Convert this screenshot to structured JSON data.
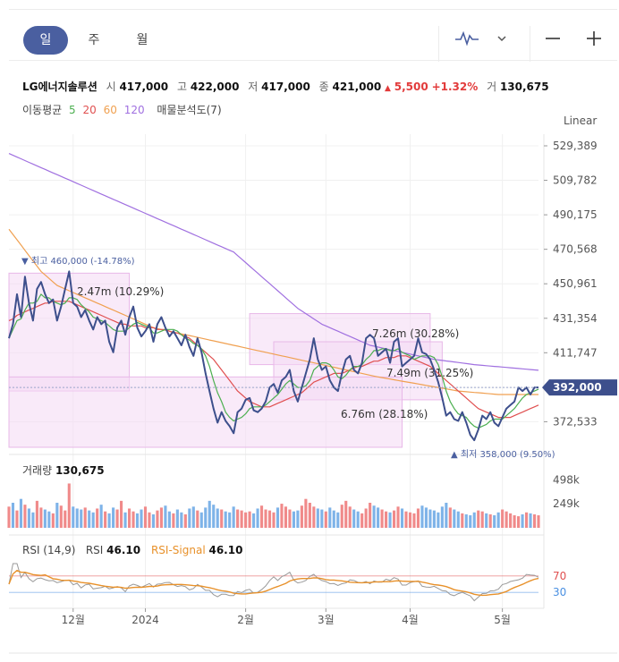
{
  "tabs": [
    {
      "label": "일",
      "active": true
    },
    {
      "label": "주",
      "active": false
    },
    {
      "label": "월",
      "active": false
    }
  ],
  "toolbar": {
    "chart_type_icon": "line-chart-icon",
    "dropdown_icon": "chevron-down-icon",
    "zoom_out_icon": "minus-icon",
    "zoom_in_icon": "plus-icon"
  },
  "stock": {
    "name": "LG에너지솔루션",
    "open_label": "시",
    "open": "417,000",
    "high_label": "고",
    "high": "422,000",
    "low_label": "저",
    "low": "417,000",
    "close_label": "종",
    "close": "421,000",
    "change_arrow": "▲",
    "change": "5,500",
    "change_pct": "+1.32%",
    "volume_label": "거",
    "volume": "130,675"
  },
  "ma": {
    "label": "이동평균",
    "p5": "5",
    "p20": "20",
    "p60": "60",
    "p120": "120",
    "vp_label": "매물분석도(7)"
  },
  "scale": "Linear",
  "colors": {
    "price": "#3d4f8c",
    "ma5": "#4caf50",
    "ma20": "#e05050",
    "ma60": "#f0a050",
    "ma120": "#a070e0",
    "up": "#e23b3b",
    "down": "#4a90e2",
    "vol_up": "#f08a8a",
    "vol_down": "#7eb3e8",
    "profile": "#f4d8f4",
    "rsi": "#999999",
    "rsi_signal": "#e8912a"
  },
  "chart_data": {
    "type": "line",
    "y_ticks": [
      "529,389",
      "509,782",
      "490,175",
      "470,568",
      "450,961",
      "431,354",
      "411,747",
      "392,000",
      "372,533"
    ],
    "y_tick_values": [
      529389,
      509782,
      490175,
      470568,
      450961,
      431354,
      411747,
      392000,
      372533
    ],
    "ylim": [
      358000,
      536000
    ],
    "x_ticks": [
      "12월",
      "2024",
      "2월",
      "3월",
      "4월",
      "5월"
    ],
    "x_tick_index": [
      16,
      34,
      59,
      79,
      100,
      123
    ],
    "last_price_label": "392,000",
    "last_price": 392000,
    "max_label": "▼ 최고 460,000 (-14.78%)",
    "max_value": 460000,
    "min_label": "▲ 최저 358,000 (9.50%)",
    "min_value": 358000,
    "volume_profile": [
      {
        "label": "2.47m (10.29%)",
        "low": 390000,
        "high": 457000,
        "start": 0,
        "end": 30
      },
      {
        "label": "7.26m (30.28%)",
        "low": 405000,
        "high": 434000,
        "start": 60,
        "end": 105
      },
      {
        "label": "7.49m (31.25%)",
        "low": 385000,
        "high": 418000,
        "start": 66,
        "end": 108
      },
      {
        "label": "6.76m (28.18%)",
        "low": 358000,
        "high": 398000,
        "start": 0,
        "end": 98
      }
    ],
    "price": [
      420000,
      428000,
      445000,
      432000,
      455000,
      440000,
      430000,
      448000,
      452000,
      445000,
      440000,
      442000,
      430000,
      438000,
      448000,
      458000,
      440000,
      438000,
      432000,
      436000,
      430000,
      425000,
      432000,
      428000,
      430000,
      418000,
      412000,
      426000,
      430000,
      422000,
      432000,
      438000,
      426000,
      421000,
      424000,
      428000,
      418000,
      428000,
      432000,
      426000,
      421000,
      424000,
      420000,
      416000,
      422000,
      415000,
      410000,
      420000,
      412000,
      400000,
      390000,
      380000,
      372000,
      378000,
      373000,
      370000,
      366000,
      378000,
      380000,
      385000,
      386000,
      379000,
      378000,
      380000,
      384000,
      392000,
      394000,
      389000,
      396000,
      398000,
      402000,
      390000,
      384000,
      392000,
      400000,
      408000,
      420000,
      408000,
      402000,
      404000,
      396000,
      392000,
      390000,
      400000,
      408000,
      410000,
      402000,
      400000,
      406000,
      420000,
      422000,
      420000,
      410000,
      412000,
      414000,
      406000,
      418000,
      420000,
      404000,
      406000,
      408000,
      410000,
      420000,
      412000,
      411000,
      408000,
      402000,
      395000,
      386000,
      376000,
      378000,
      374000,
      373000,
      378000,
      372000,
      365000,
      362000,
      368000,
      376000,
      374000,
      378000,
      372000,
      370000,
      375000,
      380000,
      382000,
      384000,
      392000,
      390000,
      392000,
      388000,
      392000,
      392000
    ],
    "ma5": [
      420000,
      425000,
      430000,
      431000,
      436000,
      440000,
      440000,
      441000,
      445000,
      443000,
      443000,
      441000,
      440000,
      439000,
      440000,
      443000,
      443000,
      442000,
      439000,
      437000,
      435000,
      432000,
      431000,
      430000,
      429000,
      427000,
      425000,
      424000,
      424000,
      424000,
      426000,
      428000,
      429000,
      428000,
      427000,
      426000,
      423000,
      423000,
      424000,
      425000,
      425000,
      425000,
      424000,
      422000,
      420000,
      419000,
      417000,
      416000,
      414000,
      410000,
      404000,
      396000,
      389000,
      384000,
      378000,
      375000,
      373000,
      374000,
      375000,
      377000,
      380000,
      381000,
      381000,
      381000,
      382000,
      384000,
      386000,
      388000,
      391000,
      394000,
      396000,
      394000,
      392000,
      392000,
      393000,
      396000,
      402000,
      404000,
      406000,
      406000,
      405000,
      402000,
      398000,
      397000,
      399000,
      402000,
      404000,
      404000,
      405000,
      408000,
      410000,
      413000,
      413000,
      414000,
      414000,
      413000,
      413000,
      414000,
      412000,
      411000,
      410000,
      408000,
      409000,
      410000,
      410000,
      410000,
      409000,
      405000,
      398000,
      390000,
      384000,
      380000,
      377000,
      376000,
      375000,
      372000,
      370000,
      369000,
      370000,
      371000,
      373000,
      374000,
      374000,
      374000,
      376000,
      378000,
      380000,
      383000,
      386000,
      388000,
      389000,
      390000,
      391000
    ],
    "ma20": [
      430000,
      431000,
      433000,
      434000,
      435000,
      436000,
      437000,
      438000,
      439000,
      440000,
      440000,
      441000,
      441000,
      441000,
      441000,
      441000,
      440000,
      439000,
      438000,
      437000,
      436000,
      435000,
      434000,
      433000,
      432000,
      431000,
      430000,
      429000,
      428000,
      428000,
      427000,
      427000,
      427000,
      427000,
      426000,
      426000,
      426000,
      425000,
      425000,
      425000,
      424000,
      423000,
      423000,
      422000,
      421000,
      420000,
      418000,
      416000,
      414000,
      412000,
      410000,
      408000,
      405000,
      402000,
      399000,
      396000,
      393000,
      390000,
      388000,
      386000,
      384000,
      383000,
      382000,
      381000,
      381000,
      381000,
      382000,
      383000,
      384000,
      385000,
      386000,
      387000,
      388000,
      389000,
      391000,
      393000,
      395000,
      396000,
      397000,
      398000,
      399000,
      400000,
      400000,
      400000,
      401000,
      402000,
      403000,
      404000,
      404000,
      405000,
      406000,
      407000,
      407000,
      408000,
      409000,
      409000,
      409000,
      410000,
      410000,
      410000,
      409000,
      408000,
      407000,
      406000,
      405000,
      404000,
      402000,
      400000,
      398000,
      396000,
      394000,
      392000,
      390000,
      388000,
      386000,
      384000,
      382000,
      380000,
      379000,
      378000,
      377000,
      376000,
      375000,
      375000,
      375000,
      375000,
      376000,
      377000,
      378000,
      379000,
      380000,
      381000,
      382000
    ],
    "ma60": [
      482000,
      479000,
      476000,
      473000,
      470000,
      467000,
      464000,
      461000,
      458000,
      456000,
      454000,
      452000,
      450000,
      449000,
      448000,
      447000,
      446000,
      445000,
      444000,
      443000,
      442000,
      441000,
      440000,
      439000,
      438000,
      437000,
      436000,
      435000,
      434000,
      433000,
      432000,
      431000,
      430000,
      429000,
      428000,
      427000,
      426000,
      425500,
      425000,
      424500,
      424000,
      423500,
      423000,
      422500,
      422000,
      421500,
      421000,
      420500,
      420000,
      419500,
      419000,
      418500,
      418000,
      417500,
      417000,
      416500,
      416000,
      415500,
      415000,
      414500,
      414000,
      413500,
      413000,
      412500,
      412000,
      411500,
      411000,
      410500,
      410000,
      409500,
      409000,
      408500,
      408000,
      407500,
      407000,
      406500,
      406000,
      405500,
      405000,
      404500,
      404000,
      403500,
      403000,
      402500,
      402000,
      401500,
      401000,
      400500,
      400000,
      399500,
      399000,
      398500,
      398000,
      397600,
      397200,
      396800,
      396400,
      396000,
      395600,
      395200,
      394800,
      394400,
      394000,
      393600,
      393200,
      392800,
      392400,
      392000,
      391600,
      391200,
      390800,
      390400,
      390000,
      389800,
      389600,
      389400,
      389200,
      389000,
      388800,
      388600,
      388400,
      388200,
      388000,
      388000,
      388000,
      388000,
      388000,
      388000,
      388000,
      388000,
      388000,
      388000,
      388000
    ],
    "ma120": [
      525000,
      524000,
      523000,
      522000,
      521000,
      520000,
      519000,
      518000,
      517000,
      516000,
      515000,
      514000,
      513000,
      512000,
      511000,
      510000,
      509000,
      508000,
      507000,
      506000,
      505000,
      504000,
      503000,
      502000,
      501000,
      500000,
      499000,
      498000,
      497000,
      496000,
      495000,
      494000,
      493000,
      492000,
      491000,
      490000,
      489000,
      488000,
      487000,
      486000,
      485000,
      484000,
      483000,
      482000,
      481000,
      480000,
      479000,
      478000,
      477000,
      476000,
      475000,
      474000,
      473000,
      472000,
      471000,
      470000,
      469000,
      467000,
      465000,
      463000,
      461000,
      459000,
      457000,
      455000,
      453000,
      451000,
      449000,
      447000,
      445000,
      443000,
      441000,
      439000,
      437000,
      435500,
      434000,
      432500,
      431000,
      429500,
      428000,
      427000,
      426000,
      425000,
      424000,
      423000,
      422000,
      421000,
      420000,
      419000,
      418000,
      417000,
      416000,
      415500,
      415000,
      414500,
      414000,
      413500,
      413000,
      412500,
      412000,
      411500,
      411000,
      410500,
      410000,
      409500,
      409000,
      408500,
      408000,
      407700,
      407400,
      407100,
      406800,
      406500,
      406200,
      405900,
      405600,
      405300,
      405000,
      404800,
      404600,
      404400,
      404200,
      404000,
      403800,
      403600,
      403400,
      403200,
      403000,
      402800,
      402600,
      402400,
      402200,
      402000,
      401800
    ],
    "volume_title": "거래량",
    "volume_value": "130,675",
    "volume_ticks": [
      "498k",
      "249k"
    ],
    "volume_tick_values": [
      498000,
      249000
    ],
    "volume_max": 650000,
    "volume": [
      220000,
      260000,
      180000,
      300000,
      240000,
      200000,
      160000,
      280000,
      210000,
      190000,
      170000,
      150000,
      260000,
      230000,
      180000,
      460000,
      220000,
      200000,
      190000,
      210000,
      180000,
      160000,
      200000,
      240000,
      170000,
      150000,
      210000,
      190000,
      280000,
      160000,
      200000,
      170000,
      150000,
      190000,
      220000,
      160000,
      140000,
      180000,
      210000,
      230000,
      170000,
      150000,
      190000,
      160000,
      140000,
      200000,
      220000,
      180000,
      160000,
      210000,
      280000,
      240000,
      200000,
      190000,
      170000,
      160000,
      220000,
      190000,
      180000,
      160000,
      170000,
      150000,
      200000,
      230000,
      190000,
      180000,
      160000,
      210000,
      250000,
      220000,
      190000,
      170000,
      180000,
      230000,
      300000,
      260000,
      220000,
      200000,
      190000,
      170000,
      210000,
      180000,
      160000,
      240000,
      280000,
      220000,
      190000,
      170000,
      150000,
      200000,
      260000,
      230000,
      210000,
      190000,
      170000,
      160000,
      180000,
      220000,
      200000,
      170000,
      160000,
      150000,
      200000,
      230000,
      210000,
      190000,
      180000,
      160000,
      220000,
      260000,
      210000,
      190000,
      170000,
      150000,
      140000,
      130000,
      160000,
      180000,
      170000,
      150000,
      140000,
      130000,
      160000,
      190000,
      170000,
      150000,
      130000,
      120000,
      140000,
      160000,
      150000,
      140000,
      130000
    ],
    "volume_up": [
      1,
      0,
      1,
      0,
      1,
      0,
      0,
      1,
      1,
      0,
      0,
      1,
      0,
      1,
      1,
      1,
      0,
      0,
      0,
      1,
      0,
      0,
      1,
      0,
      1,
      0,
      0,
      1,
      1,
      0,
      1,
      1,
      0,
      0,
      1,
      1,
      0,
      1,
      1,
      0,
      0,
      1,
      0,
      0,
      1,
      0,
      0,
      1,
      0,
      0,
      0,
      0,
      0,
      1,
      0,
      0,
      0,
      1,
      1,
      1,
      1,
      0,
      0,
      1,
      1,
      1,
      1,
      0,
      1,
      1,
      1,
      0,
      0,
      1,
      1,
      1,
      1,
      0,
      0,
      1,
      0,
      0,
      0,
      1,
      1,
      1,
      0,
      0,
      1,
      1,
      1,
      0,
      0,
      1,
      1,
      0,
      1,
      1,
      0,
      1,
      1,
      1,
      1,
      0,
      0,
      0,
      0,
      0,
      0,
      0,
      1,
      0,
      0,
      1,
      0,
      0,
      0,
      1,
      1,
      0,
      1,
      0,
      0,
      1,
      1,
      1,
      1,
      1,
      0,
      1,
      0,
      1,
      1
    ],
    "rsi_title": "RSI (14,9)",
    "rsi_label": "RSI",
    "rsi_value": "46.10",
    "rsi_signal_label": "RSI-Signal",
    "rsi_signal_value": "46.10",
    "rsi_levels": [
      "70",
      "30"
    ],
    "rsi_level_values": [
      70,
      30
    ],
    "rsi_ylim": [
      0,
      100
    ]
  }
}
